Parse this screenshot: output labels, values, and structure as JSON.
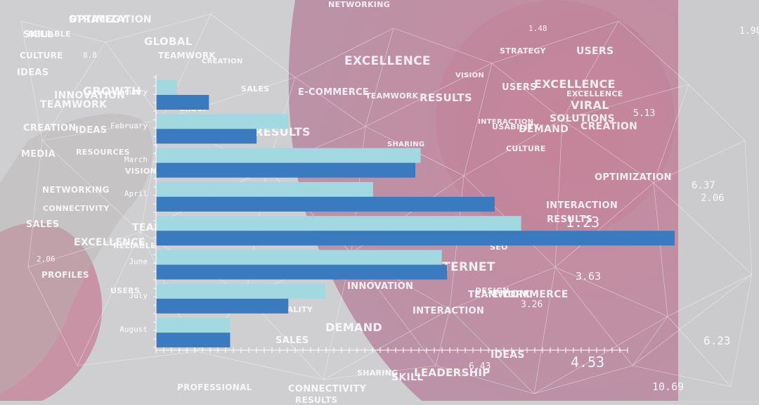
{
  "colors": {
    "series_light": "#a2d9e0",
    "series_dark": "#3a7bbf",
    "pink": "#c58aa0",
    "axis": "#ffffff"
  },
  "chart_data": {
    "type": "bar",
    "orientation": "horizontal",
    "title": "",
    "xlabel": "",
    "ylabel": "",
    "categories": [
      "January",
      "February",
      "March",
      "April",
      "",
      "June",
      "July",
      "August"
    ],
    "series": [
      {
        "name": "light",
        "values": [
          4,
          25,
          50,
          41,
          69,
          54,
          32,
          14
        ]
      },
      {
        "name": "dark",
        "values": [
          10,
          19,
          49,
          64,
          98,
          55,
          25,
          14
        ]
      }
    ],
    "xlim": [
      0,
      98
    ],
    "grid": false,
    "legend": "none"
  },
  "cloud_words": [
    "STRATEGY",
    "SKILL",
    "RELIABLE",
    "GLOBAL",
    "CULTURE",
    "TEAMWORK",
    "CREATION",
    "IDEAS",
    "GROWTH",
    "INNOVATION",
    "TEAMWORK",
    "CREATION",
    "IDEAS",
    "MEDIA",
    "RESOURCES",
    "VISION",
    "NETWORKING",
    "CONNECTIVITY",
    "SALES",
    "EXCELLENCE",
    "RELIABLE",
    "PROFILES",
    "USERS",
    "NETWORKING",
    "EXCELLENCE",
    "STRATEGY",
    "USERS",
    "SALES",
    "E-COMMERCE",
    "TEAMWORK",
    "RESULTS",
    "VISION",
    "USERS",
    "EXCELLENCE",
    "EXCELLENCE",
    "VIRAL",
    "SOLUTIONS",
    "INTERACTION",
    "USABILITY",
    "DEMAND",
    "CREATION",
    "SHARING",
    "CULTURE",
    "OPTIMIZATION",
    "RESULTS",
    "INTERACTION",
    "RESULTS",
    "INTERNET",
    "INNOVATION",
    "TEAMWORK",
    "E-COMMERCE",
    "INTERACTION",
    "DEMAND",
    "SALES",
    "IDEAS",
    "LEADERSHIP",
    "SKILL",
    "SHARING",
    "PROFESSIONAL",
    "CONNECTIVITY",
    "RESULTS",
    "QUALITY",
    "TEAM",
    "GROUP",
    "DESIGN",
    "SEO",
    "OPTIMIZATION"
  ],
  "numbers": [
    "1.98",
    "5.13",
    "6.37",
    "2.06",
    "3.63",
    "3.26",
    "6.43",
    "4.53",
    "6.23",
    "10.69",
    "2.06",
    "1.23",
    "8.8",
    "1.48"
  ]
}
